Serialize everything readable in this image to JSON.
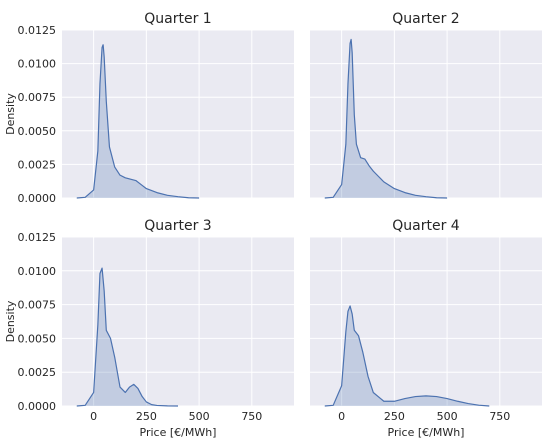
{
  "chart_data": {
    "type": "area",
    "kind": "kde",
    "layout": "2x2 facet grid",
    "xlabel": "Price [€/MWh]",
    "ylabel": "Density",
    "xlim": [
      -150,
      950
    ],
    "ylim": [
      0,
      0.0125
    ],
    "xticks": [
      0,
      250,
      500,
      750
    ],
    "yticks": [
      0.0,
      0.0025,
      0.005,
      0.0075,
      0.01,
      0.0125
    ],
    "ytick_labels": [
      "0.0000",
      "0.0025",
      "0.0050",
      "0.0075",
      "0.0100",
      "0.0125"
    ],
    "grid": true,
    "colors": {
      "line": "#4c72b0",
      "fill": "#4c72b0",
      "panel_bg": "#eaeaf2",
      "grid": "#ffffff"
    },
    "panels": [
      {
        "title": "Quarter 1",
        "x": [
          -80,
          -40,
          0,
          20,
          30,
          40,
          45,
          50,
          60,
          75,
          100,
          125,
          150,
          175,
          200,
          225,
          250,
          300,
          350,
          400,
          450,
          500
        ],
        "y": [
          0,
          5e-05,
          0.0006,
          0.0035,
          0.0085,
          0.0112,
          0.0114,
          0.0105,
          0.0072,
          0.0038,
          0.0023,
          0.0017,
          0.0015,
          0.0014,
          0.0013,
          0.001,
          0.0007,
          0.0004,
          0.0002,
          0.0001,
          2e-05,
          0
        ]
      },
      {
        "title": "Quarter 2",
        "x": [
          -80,
          -40,
          0,
          20,
          30,
          40,
          45,
          50,
          60,
          70,
          90,
          110,
          130,
          150,
          175,
          200,
          250,
          300,
          350,
          400,
          450,
          500
        ],
        "y": [
          0,
          5e-05,
          0.001,
          0.004,
          0.0085,
          0.0115,
          0.0118,
          0.0108,
          0.0062,
          0.004,
          0.003,
          0.0029,
          0.0024,
          0.002,
          0.0016,
          0.0012,
          0.0007,
          0.0004,
          0.0002,
          0.0001,
          2e-05,
          0
        ]
      },
      {
        "title": "Quarter 3",
        "x": [
          -80,
          -40,
          0,
          20,
          30,
          40,
          50,
          60,
          80,
          100,
          125,
          150,
          170,
          190,
          210,
          230,
          250,
          275,
          300,
          350,
          400
        ],
        "y": [
          0,
          5e-05,
          0.001,
          0.006,
          0.0098,
          0.0102,
          0.0085,
          0.0056,
          0.005,
          0.0036,
          0.0014,
          0.001,
          0.0014,
          0.0016,
          0.0013,
          0.0007,
          0.0003,
          0.0001,
          4e-05,
          1e-05,
          0
        ]
      },
      {
        "title": "Quarter 4",
        "x": [
          -80,
          -40,
          0,
          20,
          30,
          40,
          50,
          60,
          80,
          100,
          125,
          150,
          200,
          250,
          300,
          350,
          400,
          450,
          500,
          550,
          600,
          650,
          700
        ],
        "y": [
          0,
          5e-05,
          0.0015,
          0.0055,
          0.007,
          0.0074,
          0.0068,
          0.0056,
          0.0052,
          0.004,
          0.0022,
          0.001,
          0.00035,
          0.00035,
          0.00055,
          0.0007,
          0.00075,
          0.0007,
          0.00055,
          0.00035,
          0.00018,
          6e-05,
          0
        ]
      }
    ]
  }
}
